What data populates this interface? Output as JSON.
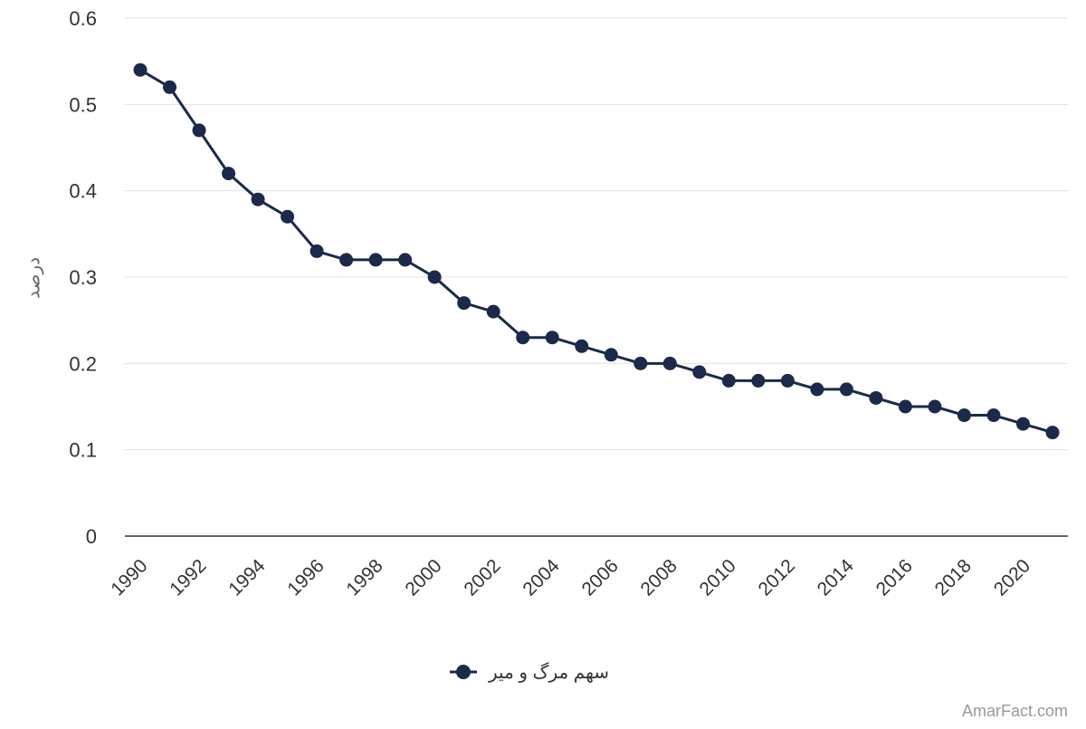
{
  "chart_data": {
    "type": "line",
    "title": "",
    "xlabel": "",
    "ylabel": "درصد",
    "x": [
      1990,
      1991,
      1992,
      1993,
      1994,
      1995,
      1996,
      1997,
      1998,
      1999,
      2000,
      2001,
      2002,
      2003,
      2004,
      2005,
      2006,
      2007,
      2008,
      2009,
      2010,
      2011,
      2012,
      2013,
      2014,
      2015,
      2016,
      2017,
      2018,
      2019,
      2020,
      2021
    ],
    "xticks": [
      "1990",
      "1992",
      "1994",
      "1996",
      "1998",
      "2000",
      "2002",
      "2004",
      "2006",
      "2008",
      "2010",
      "2012",
      "2014",
      "2016",
      "2018",
      "2020"
    ],
    "yticks": [
      "0",
      "0.1",
      "0.2",
      "0.3",
      "0.4",
      "0.5",
      "0.6"
    ],
    "ylim": [
      0,
      0.6
    ],
    "grid": true,
    "legend_position": "bottom-center",
    "series": [
      {
        "name": "سهم مرگ و میر",
        "color": "#1b2a4a",
        "values": [
          0.54,
          0.52,
          0.47,
          0.42,
          0.39,
          0.37,
          0.33,
          0.32,
          0.32,
          0.32,
          0.3,
          0.27,
          0.26,
          0.23,
          0.23,
          0.22,
          0.21,
          0.2,
          0.2,
          0.19,
          0.18,
          0.18,
          0.18,
          0.17,
          0.17,
          0.16,
          0.15,
          0.15,
          0.14,
          0.14,
          0.13,
          0.12
        ]
      }
    ]
  },
  "watermark": "AmarFact.com"
}
